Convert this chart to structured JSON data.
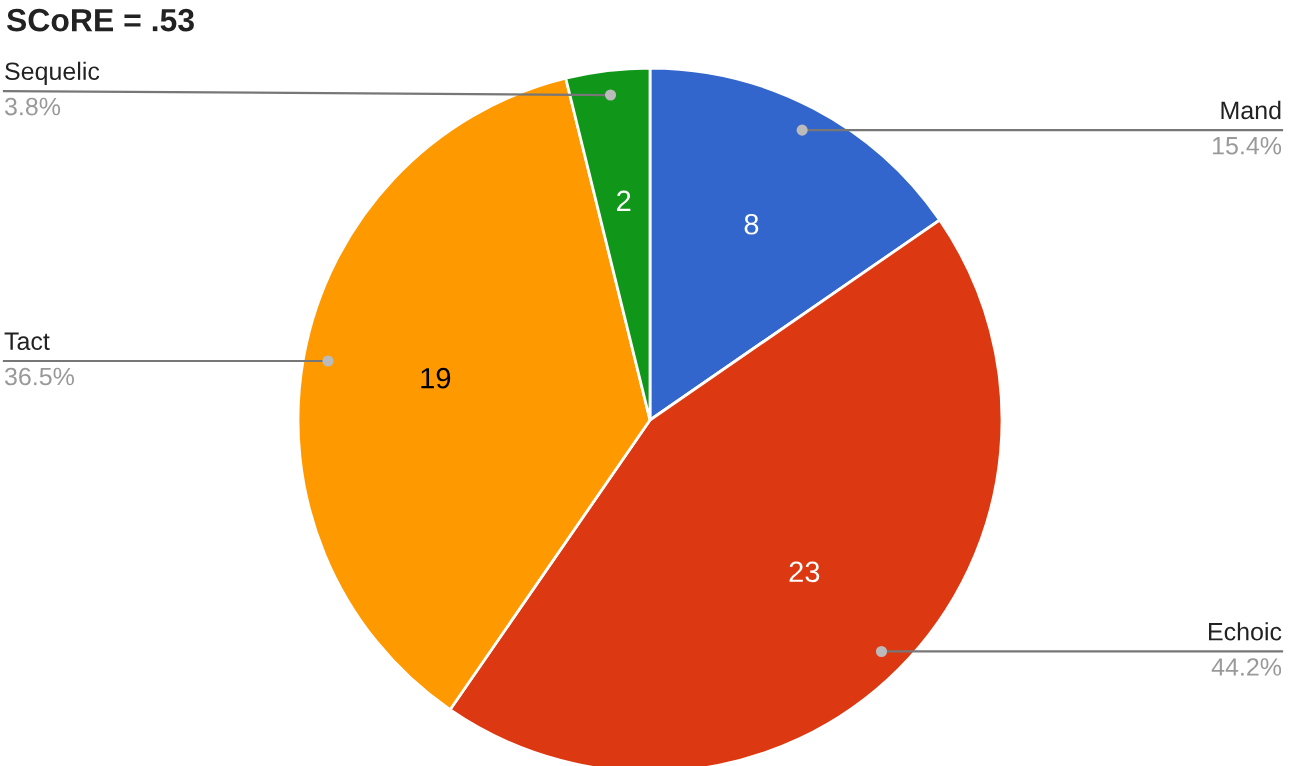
{
  "chart_data": {
    "type": "pie",
    "title": "SCoRE = .53",
    "categories": [
      "Mand",
      "Echoic",
      "Tact",
      "Sequelic"
    ],
    "values": [
      8,
      23,
      19,
      2
    ],
    "colors": [
      "#3366cc",
      "#dc3912",
      "#ff9900",
      "#109618"
    ],
    "data_labels": true,
    "annotations": [
      {
        "text": "15.4%",
        "x": "Mand"
      },
      {
        "text": "44.2%",
        "x": "Echoic"
      },
      {
        "text": "36.5%",
        "x": "Tact"
      },
      {
        "text": "3.8%",
        "x": "Sequelic"
      }
    ]
  }
}
